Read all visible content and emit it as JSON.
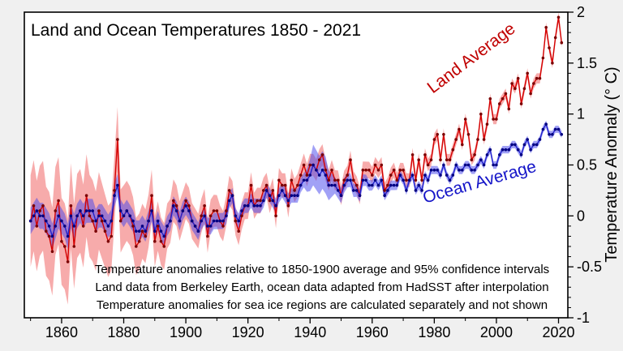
{
  "page": {
    "background": "#f0f0f0",
    "plot_background": "#ffffff"
  },
  "chart_data": {
    "type": "line",
    "title": "Land and Ocean Temperatures 1850 - 2021",
    "xlabel": "",
    "ylabel": "Temperature Anomaly (° C)",
    "xlim": [
      1848,
      2023
    ],
    "ylim": [
      -1,
      2
    ],
    "x_ticks": [
      1860,
      1880,
      1900,
      1920,
      1940,
      1960,
      1980,
      2000,
      2020
    ],
    "y_ticks": [
      -1,
      -0.5,
      0,
      0.5,
      1,
      1.5,
      2
    ],
    "x_minor_step": 10,
    "y_minor_step": 0.1,
    "grid": false,
    "legend_position": "inline-annotations",
    "year_start": 1850,
    "year_step": 1,
    "annotations": [
      {
        "text": "Land Average",
        "color": "#c00000"
      },
      {
        "text": "Ocean Average",
        "color": "#1414c8"
      }
    ],
    "footnotes": [
      "Temperature anomalies relative to 1850-1900 average and 95% confidence intervals",
      "Land data from Berkeley Earth, ocean data adapted from HadSST after interpolation",
      "Temperature anomalies for sea ice regions are calculated separately and not shown"
    ],
    "series": [
      {
        "name": "Land Average",
        "color": "#d40000",
        "marker_color": "#7a0000",
        "band_color": "#ee4444",
        "band_opacity": 0.45,
        "ci_points": [
          [
            1850,
            0.45
          ],
          [
            1870,
            0.4
          ],
          [
            1880,
            0.3
          ],
          [
            1890,
            0.25
          ],
          [
            1900,
            0.18
          ],
          [
            1920,
            0.13
          ],
          [
            1940,
            0.11
          ],
          [
            1960,
            0.08
          ],
          [
            1980,
            0.06
          ],
          [
            2000,
            0.05
          ],
          [
            2021,
            0.05
          ]
        ],
        "values": [
          -0.05,
          0.1,
          -0.1,
          0.05,
          0.1,
          -0.15,
          -0.2,
          -0.35,
          0.05,
          0.15,
          -0.25,
          -0.3,
          -0.45,
          0.1,
          -0.3,
          0.0,
          0.05,
          -0.1,
          0.2,
          0.0,
          -0.05,
          -0.15,
          0.05,
          -0.05,
          -0.15,
          -0.25,
          -0.2,
          0.25,
          0.75,
          -0.05,
          0.0,
          0.05,
          0.0,
          -0.1,
          -0.3,
          -0.25,
          -0.15,
          -0.2,
          -0.05,
          0.2,
          -0.25,
          -0.1,
          -0.25,
          -0.3,
          -0.1,
          -0.05,
          0.15,
          0.1,
          -0.05,
          0.05,
          0.15,
          0.1,
          -0.05,
          -0.1,
          -0.15,
          0.0,
          0.1,
          -0.2,
          0.0,
          0.05,
          0.05,
          -0.05,
          -0.1,
          0.05,
          0.25,
          0.2,
          -0.05,
          -0.15,
          0.0,
          0.1,
          0.1,
          0.3,
          0.1,
          0.15,
          0.15,
          0.25,
          0.3,
          0.15,
          0.25,
          0.0,
          0.35,
          0.3,
          0.3,
          0.1,
          0.35,
          0.25,
          0.3,
          0.4,
          0.5,
          0.4,
          0.5,
          0.5,
          0.45,
          0.55,
          0.6,
          0.45,
          0.35,
          0.45,
          0.35,
          0.35,
          0.2,
          0.35,
          0.4,
          0.55,
          0.35,
          0.3,
          0.2,
          0.45,
          0.45,
          0.45,
          0.4,
          0.5,
          0.45,
          0.5,
          0.25,
          0.3,
          0.4,
          0.45,
          0.35,
          0.45,
          0.45,
          0.35,
          0.35,
          0.6,
          0.35,
          0.55,
          0.35,
          0.6,
          0.5,
          0.55,
          0.75,
          0.8,
          0.55,
          0.8,
          0.55,
          0.55,
          0.65,
          0.75,
          0.85,
          0.7,
          0.95,
          0.8,
          0.55,
          0.6,
          0.75,
          1.0,
          0.75,
          0.9,
          1.15,
          0.95,
          0.95,
          1.1,
          1.15,
          1.2,
          1.05,
          1.3,
          1.25,
          1.35,
          1.1,
          1.25,
          1.4,
          1.2,
          1.3,
          1.35,
          1.35,
          1.55,
          1.85,
          1.65,
          1.5,
          1.75,
          1.95,
          1.7
        ]
      },
      {
        "name": "Ocean Average",
        "color": "#2222cc",
        "marker_color": "#000080",
        "band_color": "#4444ee",
        "band_opacity": 0.5,
        "ci_points": [
          [
            1850,
            0.13
          ],
          [
            1880,
            0.11
          ],
          [
            1900,
            0.09
          ],
          [
            1920,
            0.07
          ],
          [
            1938,
            0.07
          ],
          [
            1941,
            0.2
          ],
          [
            1945,
            0.18
          ],
          [
            1948,
            0.08
          ],
          [
            1960,
            0.05
          ],
          [
            1980,
            0.04
          ],
          [
            2021,
            0.035
          ]
        ],
        "values": [
          -0.05,
          0.0,
          0.05,
          0.0,
          0.0,
          -0.05,
          -0.1,
          -0.2,
          -0.1,
          0.0,
          -0.05,
          -0.1,
          -0.2,
          0.0,
          -0.1,
          0.0,
          0.05,
          0.0,
          0.05,
          0.05,
          0.05,
          -0.05,
          0.0,
          0.0,
          -0.05,
          -0.1,
          -0.05,
          0.2,
          0.3,
          0.05,
          0.0,
          0.05,
          0.0,
          -0.05,
          -0.15,
          -0.15,
          -0.1,
          -0.15,
          -0.05,
          0.05,
          -0.15,
          -0.05,
          -0.15,
          -0.2,
          -0.1,
          -0.05,
          0.1,
          0.05,
          -0.05,
          0.05,
          0.1,
          0.05,
          -0.05,
          -0.1,
          -0.15,
          -0.05,
          0.0,
          -0.1,
          -0.1,
          -0.05,
          -0.05,
          -0.05,
          -0.05,
          0.0,
          0.15,
          0.2,
          0.0,
          -0.05,
          0.05,
          0.1,
          0.1,
          0.15,
          0.1,
          0.1,
          0.1,
          0.15,
          0.25,
          0.2,
          0.15,
          0.1,
          0.2,
          0.25,
          0.2,
          0.15,
          0.2,
          0.2,
          0.2,
          0.3,
          0.35,
          0.35,
          0.4,
          0.5,
          0.45,
          0.4,
          0.45,
          0.4,
          0.3,
          0.3,
          0.3,
          0.25,
          0.2,
          0.3,
          0.35,
          0.35,
          0.25,
          0.25,
          0.2,
          0.35,
          0.35,
          0.3,
          0.3,
          0.35,
          0.3,
          0.35,
          0.2,
          0.25,
          0.3,
          0.3,
          0.3,
          0.4,
          0.35,
          0.25,
          0.35,
          0.4,
          0.25,
          0.3,
          0.25,
          0.4,
          0.35,
          0.45,
          0.45,
          0.45,
          0.4,
          0.5,
          0.4,
          0.35,
          0.4,
          0.5,
          0.45,
          0.45,
          0.5,
          0.5,
          0.45,
          0.45,
          0.5,
          0.55,
          0.5,
          0.6,
          0.65,
          0.5,
          0.5,
          0.6,
          0.65,
          0.65,
          0.65,
          0.7,
          0.7,
          0.65,
          0.6,
          0.7,
          0.75,
          0.65,
          0.7,
          0.7,
          0.75,
          0.85,
          0.9,
          0.8,
          0.8,
          0.85,
          0.85,
          0.8
        ]
      }
    ]
  }
}
